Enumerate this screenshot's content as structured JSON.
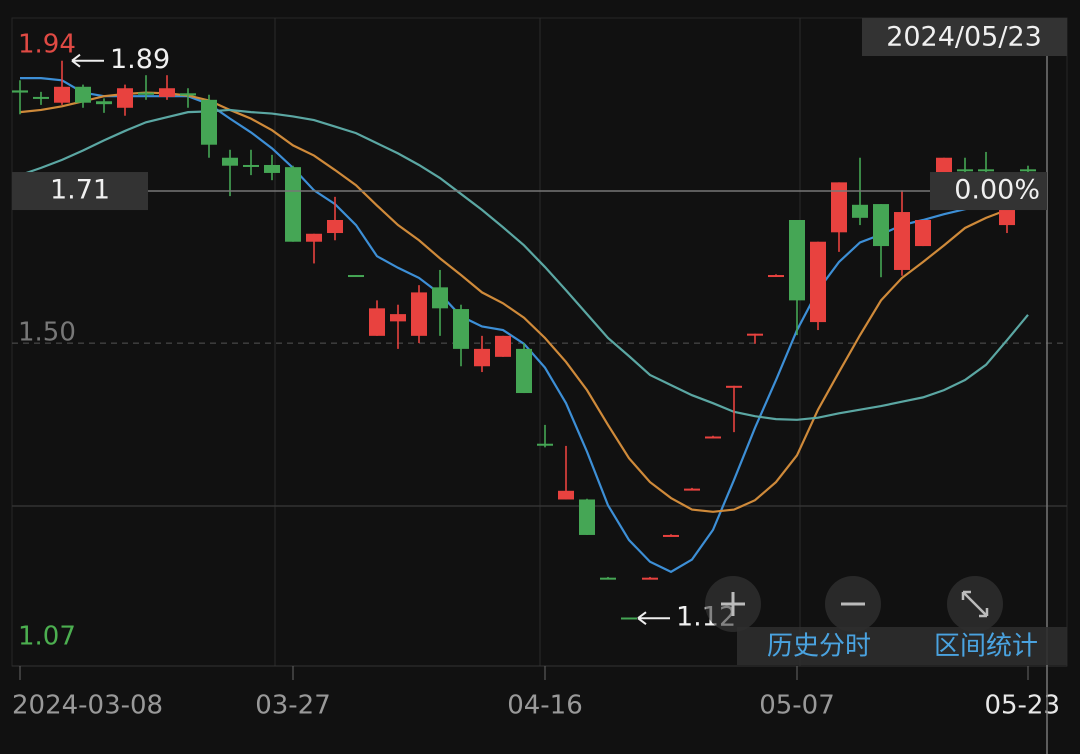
{
  "chart_data": {
    "type": "candlestick",
    "date_label": "2024/05/23",
    "categories": [
      "2024-03-08",
      null,
      null,
      null,
      null,
      null,
      null,
      null,
      null,
      null,
      null,
      null,
      null,
      "03-27",
      null,
      null,
      null,
      null,
      null,
      null,
      null,
      null,
      null,
      null,
      null,
      "04-16",
      null,
      null,
      null,
      null,
      null,
      null,
      null,
      null,
      null,
      null,
      null,
      "05-07",
      null,
      null,
      null,
      null,
      null,
      null,
      null,
      null,
      null,
      null,
      "05-23"
    ],
    "open": [
      1.849,
      1.84,
      1.832,
      1.854,
      1.834,
      1.825,
      1.846,
      1.84,
      1.845,
      1.836,
      1.756,
      1.746,
      1.746,
      1.743,
      1.64,
      1.652,
      1.594,
      1.51,
      1.53,
      1.51,
      1.577,
      1.547,
      1.468,
      1.481,
      1.492,
      1.361,
      1.284,
      1.284,
      1.176,
      1.121,
      1.175,
      1.234,
      1.298,
      1.37,
      1.44,
      1.512,
      1.593,
      1.67,
      1.529,
      1.653,
      1.691,
      1.692,
      1.601,
      1.634,
      1.736,
      1.74,
      1.74,
      1.663,
      1.74
    ],
    "high": [
      1.863,
      1.847,
      1.89,
      1.857,
      1.838,
      1.857,
      1.87,
      1.87,
      1.852,
      1.843,
      1.767,
      1.767,
      1.76,
      1.745,
      1.651,
      1.702,
      1.594,
      1.559,
      1.553,
      1.58,
      1.601,
      1.553,
      1.51,
      1.51,
      1.5,
      1.387,
      1.358,
      1.285,
      1.177,
      1.121,
      1.177,
      1.236,
      1.3,
      1.372,
      1.441,
      1.513,
      1.595,
      1.67,
      1.64,
      1.722,
      1.756,
      1.692,
      1.711,
      1.67,
      1.756,
      1.756,
      1.764,
      1.684,
      1.745
    ],
    "low": [
      1.816,
      1.829,
      1.829,
      1.825,
      1.818,
      1.814,
      1.836,
      1.836,
      1.825,
      1.756,
      1.703,
      1.732,
      1.725,
      1.64,
      1.61,
      1.642,
      1.593,
      1.51,
      1.492,
      1.5,
      1.51,
      1.468,
      1.46,
      1.481,
      1.431,
      1.356,
      1.284,
      1.235,
      1.174,
      1.12,
      1.174,
      1.234,
      1.298,
      1.37,
      1.377,
      1.499,
      1.593,
      1.511,
      1.518,
      1.626,
      1.663,
      1.591,
      1.593,
      1.634,
      1.736,
      1.73,
      1.704,
      1.652,
      1.736
    ],
    "close": [
      1.846,
      1.838,
      1.854,
      1.832,
      1.83,
      1.852,
      1.843,
      1.852,
      1.842,
      1.774,
      1.745,
      1.744,
      1.735,
      1.64,
      1.651,
      1.67,
      1.593,
      1.548,
      1.54,
      1.57,
      1.548,
      1.492,
      1.492,
      1.51,
      1.431,
      1.36,
      1.296,
      1.235,
      1.175,
      1.12,
      1.176,
      1.235,
      1.299,
      1.371,
      1.441,
      1.513,
      1.594,
      1.559,
      1.64,
      1.722,
      1.673,
      1.634,
      1.681,
      1.67,
      1.756,
      1.738,
      1.738,
      1.684,
      1.739
    ],
    "up_color": "#e8423f",
    "down_color": "#45a655",
    "lines": [
      {
        "color": "#3d8fd6",
        "values": [
          1.866,
          1.866,
          1.863,
          1.846,
          1.841,
          1.841,
          1.841,
          1.841,
          1.841,
          1.83,
          1.81,
          1.791,
          1.769,
          1.742,
          1.711,
          1.692,
          1.663,
          1.62,
          1.604,
          1.59,
          1.568,
          1.537,
          1.523,
          1.518,
          1.499,
          1.466,
          1.417,
          1.35,
          1.276,
          1.228,
          1.198,
          1.184,
          1.201,
          1.242,
          1.311,
          1.383,
          1.449,
          1.518,
          1.573,
          1.612,
          1.639,
          1.65,
          1.663,
          1.67,
          1.678,
          1.685,
          1.69,
          1.693,
          1.695
        ]
      },
      {
        "color": "#cf8a3a",
        "values": [
          1.819,
          1.822,
          1.827,
          1.834,
          1.841,
          1.844,
          1.846,
          1.845,
          1.842,
          1.835,
          1.822,
          1.81,
          1.794,
          1.773,
          1.759,
          1.739,
          1.718,
          1.69,
          1.663,
          1.642,
          1.617,
          1.594,
          1.57,
          1.555,
          1.535,
          1.507,
          1.474,
          1.435,
          1.387,
          1.341,
          1.308,
          1.286,
          1.27,
          1.267,
          1.27,
          1.283,
          1.308,
          1.345,
          1.408,
          1.46,
          1.511,
          1.559,
          1.59,
          1.612,
          1.635,
          1.659,
          1.673,
          1.684,
          1.692
        ]
      },
      {
        "color": "#5ba7a3",
        "values": [
          1.732,
          1.742,
          1.753,
          1.766,
          1.78,
          1.793,
          1.805,
          1.812,
          1.819,
          1.82,
          1.822,
          1.819,
          1.817,
          1.813,
          1.808,
          1.799,
          1.79,
          1.776,
          1.762,
          1.746,
          1.728,
          1.706,
          1.684,
          1.66,
          1.635,
          1.605,
          1.573,
          1.54,
          1.507,
          1.482,
          1.456,
          1.442,
          1.428,
          1.417,
          1.405,
          1.399,
          1.395,
          1.394,
          1.397,
          1.403,
          1.408,
          1.413,
          1.419,
          1.425,
          1.435,
          1.449,
          1.47,
          1.504,
          1.539
        ]
      }
    ],
    "ylim": [
      1.054,
      1.949
    ],
    "yticks": [
      {
        "value": 1.5,
        "label": "1.50"
      }
    ],
    "gridlines": [
      1.275
    ],
    "axis_max": 1.94,
    "axis_min": 1.07,
    "crosshair": {
      "value": 1.71,
      "change": {
        "value": 0,
        "label": "0.00%"
      }
    },
    "high_mark": 1.89,
    "low_mark": 1.12,
    "buttons": [
      "历史分时",
      "区间统计"
    ]
  }
}
